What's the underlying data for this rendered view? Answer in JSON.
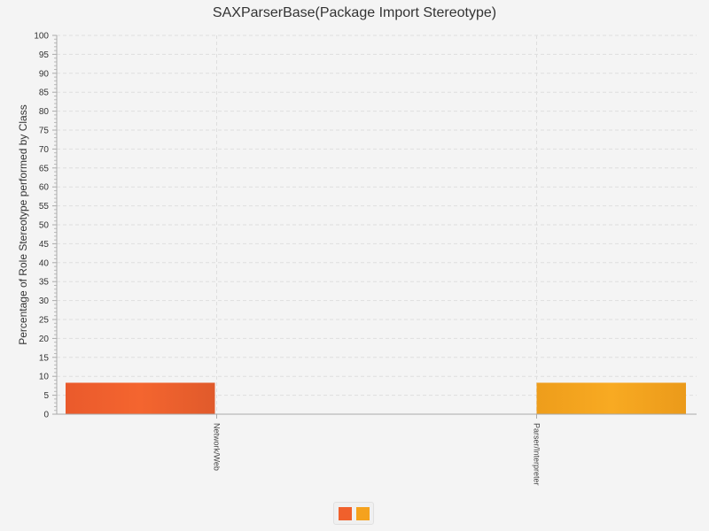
{
  "chart_data": {
    "type": "bar",
    "title": "SAXParserBase(Package Import Stereotype)",
    "ylabel": "Percentage of Role Stereotype performed by Class",
    "xlabel": "",
    "categories": [
      "Network/Web",
      "Parser/Interpreter"
    ],
    "series": [
      {
        "values": [
          8.3,
          0
        ],
        "color": "#f0602c"
      },
      {
        "values": [
          0,
          8.3
        ],
        "color": "#f5a21d"
      }
    ],
    "ylim": [
      0,
      100
    ],
    "ytick_step": 5,
    "grid": true,
    "legend_position": "bottom-center"
  }
}
